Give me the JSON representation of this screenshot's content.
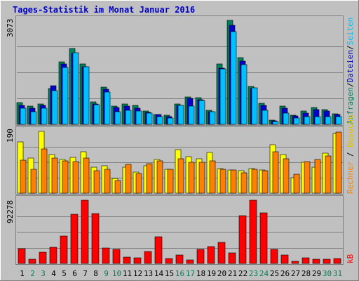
{
  "colors": {
    "background": "#c0c0c0",
    "frame_dark": "#808080",
    "frame_light": "#ffffff",
    "title": "#0000cc",
    "grid": "#808080",
    "anfragen": "#00805c",
    "dateien": "#0000d0",
    "seiten": "#00c0ff",
    "besuche": "#ffff00",
    "rechner": "#ff8000",
    "kb": "#ff0000",
    "day_weekday": "#000000",
    "day_weekend": "#00805c"
  },
  "chart_data": {
    "type": "bar",
    "title": "Tages-Statistik im Monat Januar 2016",
    "categories": [
      "1",
      "2",
      "3",
      "4",
      "5",
      "6",
      "7",
      "8",
      "9",
      "10",
      "11",
      "12",
      "13",
      "14",
      "15",
      "16",
      "17",
      "18",
      "19",
      "20",
      "21",
      "22",
      "23",
      "24",
      "25",
      "26",
      "27",
      "28",
      "29",
      "30",
      "31"
    ],
    "weekend_days": [
      "2",
      "3",
      "9",
      "10",
      "16",
      "17",
      "23",
      "24",
      "30",
      "31"
    ],
    "panels": [
      {
        "id": "top",
        "ymax_label": "3073",
        "ymax": 3073,
        "series": [
          {
            "name": "Anfragen",
            "values": [
              635,
              530,
              610,
              1050,
              1840,
              2240,
              1780,
              660,
              1110,
              540,
              600,
              560,
              400,
              300,
              260,
              610,
              815,
              790,
              420,
              1790,
              3073,
              1970,
              1120,
              630,
              130,
              530,
              270,
              395,
              500,
              440,
              320
            ]
          },
          {
            "name": "Dateien",
            "values": [
              565,
              470,
              560,
              1150,
              1780,
              2100,
              1700,
              610,
              1040,
              500,
              540,
              480,
              350,
              300,
              230,
              570,
              760,
              735,
              380,
              1670,
              2920,
              1870,
              1050,
              570,
              110,
              480,
              240,
              330,
              440,
              400,
              290
            ]
          },
          {
            "name": "Seiten",
            "values": [
              475,
              370,
              480,
              990,
              1680,
              2110,
              1700,
              590,
              960,
              370,
              420,
              400,
              340,
              230,
              180,
              560,
              540,
              715,
              370,
              1630,
              2740,
              1760,
              1080,
              420,
              90,
              340,
              190,
              230,
              230,
              220,
              220
            ]
          }
        ],
        "legend": [
          "Anfragen",
          "Dateien",
          "Seiten"
        ]
      },
      {
        "id": "middle",
        "ymax_label": "190",
        "ymax": 190,
        "series": [
          {
            "name": "Besuche",
            "values": [
              157,
              108,
              190,
              119,
              104,
              110,
              127,
              79,
              84,
              45,
              80,
              64,
              85,
              103,
              73,
              133,
              112,
              106,
              126,
              76,
              72,
              69,
              75,
              72,
              149,
              119,
              48,
              94,
              79,
              123,
              183
            ]
          },
          {
            "name": "Rechner",
            "values": [
              102,
              73,
              137,
              108,
              99,
              97,
              108,
              70,
              74,
              39,
              88,
              60,
              91,
              99,
              73,
              105,
              94,
              95,
              99,
              73,
              71,
              62,
              74,
              69,
              128,
              105,
              58,
              98,
              104,
              115,
              187
            ]
          }
        ],
        "legend": [
          "Besuche",
          "Rechner"
        ]
      },
      {
        "id": "bottom",
        "ymax_label": "92278",
        "ymax": 92278,
        "series": [
          {
            "name": "kB",
            "values": [
              22000,
              6000,
              16000,
              24000,
              40000,
              72000,
              92278,
              73000,
              23000,
              20000,
              9000,
              8000,
              17000,
              39000,
              7000,
              12000,
              5000,
              21000,
              25000,
              31000,
              15000,
              70000,
              92278,
              74000,
              21000,
              12000,
              3000,
              8000,
              6000,
              6000,
              7000
            ]
          }
        ],
        "legend": [
          "kB"
        ]
      }
    ],
    "grid": true
  }
}
